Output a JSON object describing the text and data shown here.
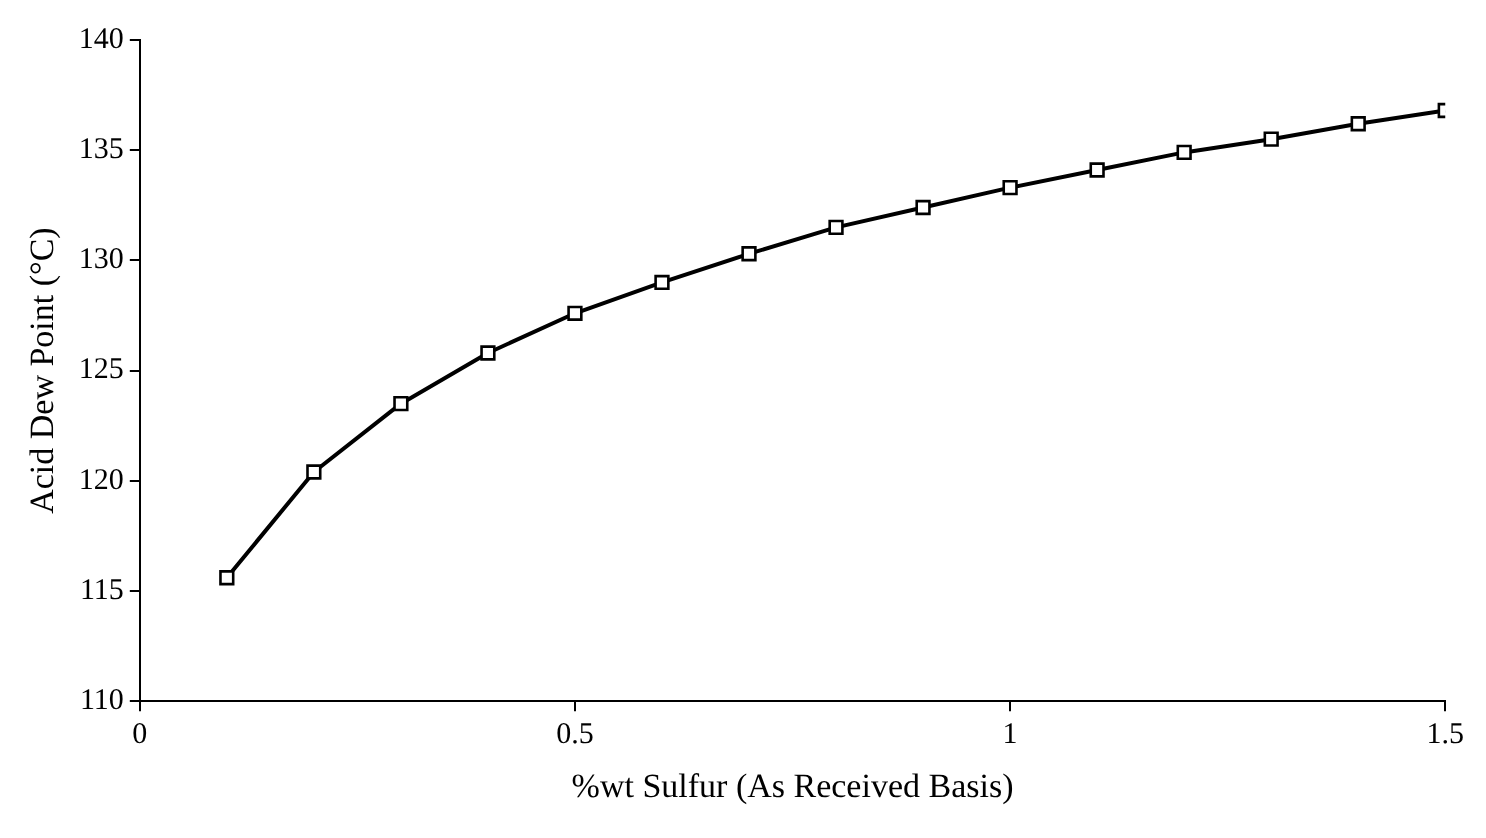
{
  "chart_data": {
    "type": "line",
    "xlabel": "%wt Sulfur (As Received Basis)",
    "ylabel": "Acid Dew Point (°C)",
    "x": [
      0.1,
      0.2,
      0.3,
      0.4,
      0.5,
      0.6,
      0.7,
      0.8,
      0.9,
      1.0,
      1.1,
      1.2,
      1.3,
      1.4,
      1.5
    ],
    "series": [
      {
        "color": "#000000",
        "values": [
          115.6,
          120.4,
          123.5,
          125.8,
          127.6,
          129.0,
          130.3,
          131.5,
          132.4,
          133.3,
          134.1,
          134.9,
          135.5,
          136.2,
          136.8
        ]
      }
    ],
    "xlim": [
      0,
      1.5
    ],
    "xticks": [
      0,
      {
        "value": 0.5,
        "label": "0.5"
      },
      1,
      {
        "value": 1.5,
        "label": "1.5"
      }
    ],
    "ylim": [
      110,
      140
    ],
    "yticks": [
      110,
      115,
      120,
      125,
      130,
      135,
      140
    ],
    "grid": false,
    "legend": false,
    "marker": "square",
    "line_style": "solid"
  }
}
